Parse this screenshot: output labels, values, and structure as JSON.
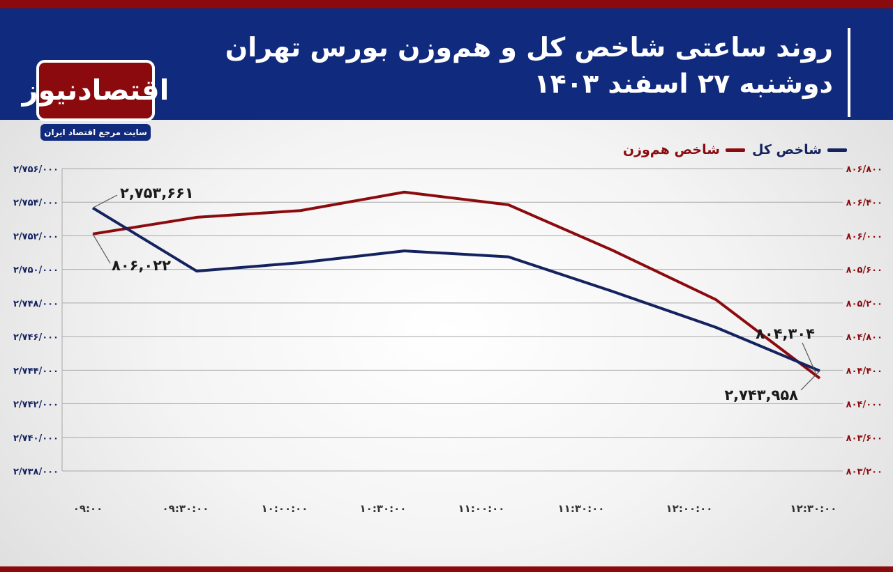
{
  "header": {
    "title": "روند ساعتی شاخص کل و هم‌وزن بورس تهران",
    "subtitle": "دوشنبه ۲۷ اسفند ۱۴۰۳"
  },
  "brand": {
    "logo_text": "اقتصادنیوز",
    "tagline": "سایت مرجع اقتصاد ایران"
  },
  "colors": {
    "header_bg": "#102a7d",
    "accent_red": "#8b0a0e",
    "total_index": "#14235f",
    "equal_weight_index": "#8b0a0e"
  },
  "chart_data": {
    "type": "line",
    "categories": [
      "۰۹:۰۰",
      "۰۹:۳۰:۰۰",
      "۱۰:۰۰:۰۰",
      "۱۰:۳۰:۰۰",
      "۱۱:۰۰:۰۰",
      "۱۱:۳۰:۰۰",
      "۱۲:۰۰:۰۰",
      "۱۲:۳۰:۰۰"
    ],
    "legend_position": "top-right",
    "grid": true,
    "series": [
      {
        "name": "شاخص کل",
        "axis": "left",
        "values": [
          2753661,
          2749900,
          2750400,
          2751100,
          2750750,
          2748700,
          2746550,
          2743958
        ]
      },
      {
        "name": "شاخص هم‌وزن",
        "axis": "right",
        "values": [
          806022,
          806220,
          806300,
          806520,
          806370,
          805830,
          805240,
          804304
        ]
      }
    ],
    "y_left": {
      "min": 2738000,
      "max": 2756000,
      "ticks": [
        2756000,
        2754000,
        2752000,
        2750000,
        2748000,
        2746000,
        2744000,
        2742000,
        2740000,
        2738000
      ],
      "tick_labels": [
        "۲/۷۵۶/۰۰۰",
        "۲/۷۵۴/۰۰۰",
        "۲/۷۵۲/۰۰۰",
        "۲/۷۵۰/۰۰۰",
        "۲/۷۴۸/۰۰۰",
        "۲/۷۴۶/۰۰۰",
        "۲/۷۴۴/۰۰۰",
        "۲/۷۴۲/۰۰۰",
        "۲/۷۴۰/۰۰۰",
        "۲/۷۳۸/۰۰۰"
      ]
    },
    "y_right": {
      "min": 803200,
      "max": 806800,
      "ticks": [
        806800,
        806400,
        806000,
        805600,
        805200,
        804800,
        804400,
        804000,
        803600,
        803200
      ],
      "tick_labels": [
        "۸۰۶/۸۰۰",
        "۸۰۶/۴۰۰",
        "۸۰۶/۰۰۰",
        "۸۰۵/۶۰۰",
        "۸۰۵/۲۰۰",
        "۸۰۴/۸۰۰",
        "۸۰۴/۴۰۰",
        "۸۰۴/۰۰۰",
        "۸۰۳/۶۰۰",
        "۸۰۳/۲۰۰"
      ]
    },
    "annotations": [
      {
        "series": 0,
        "point": 0,
        "text": "۲,۷۵۳,۶۶۱"
      },
      {
        "series": 1,
        "point": 0,
        "text": "۸۰۶,۰۲۲"
      },
      {
        "series": 1,
        "point": 7,
        "text": "۸۰۴,۳۰۴"
      },
      {
        "series": 0,
        "point": 7,
        "text": "۲,۷۴۳,۹۵۸"
      }
    ]
  }
}
